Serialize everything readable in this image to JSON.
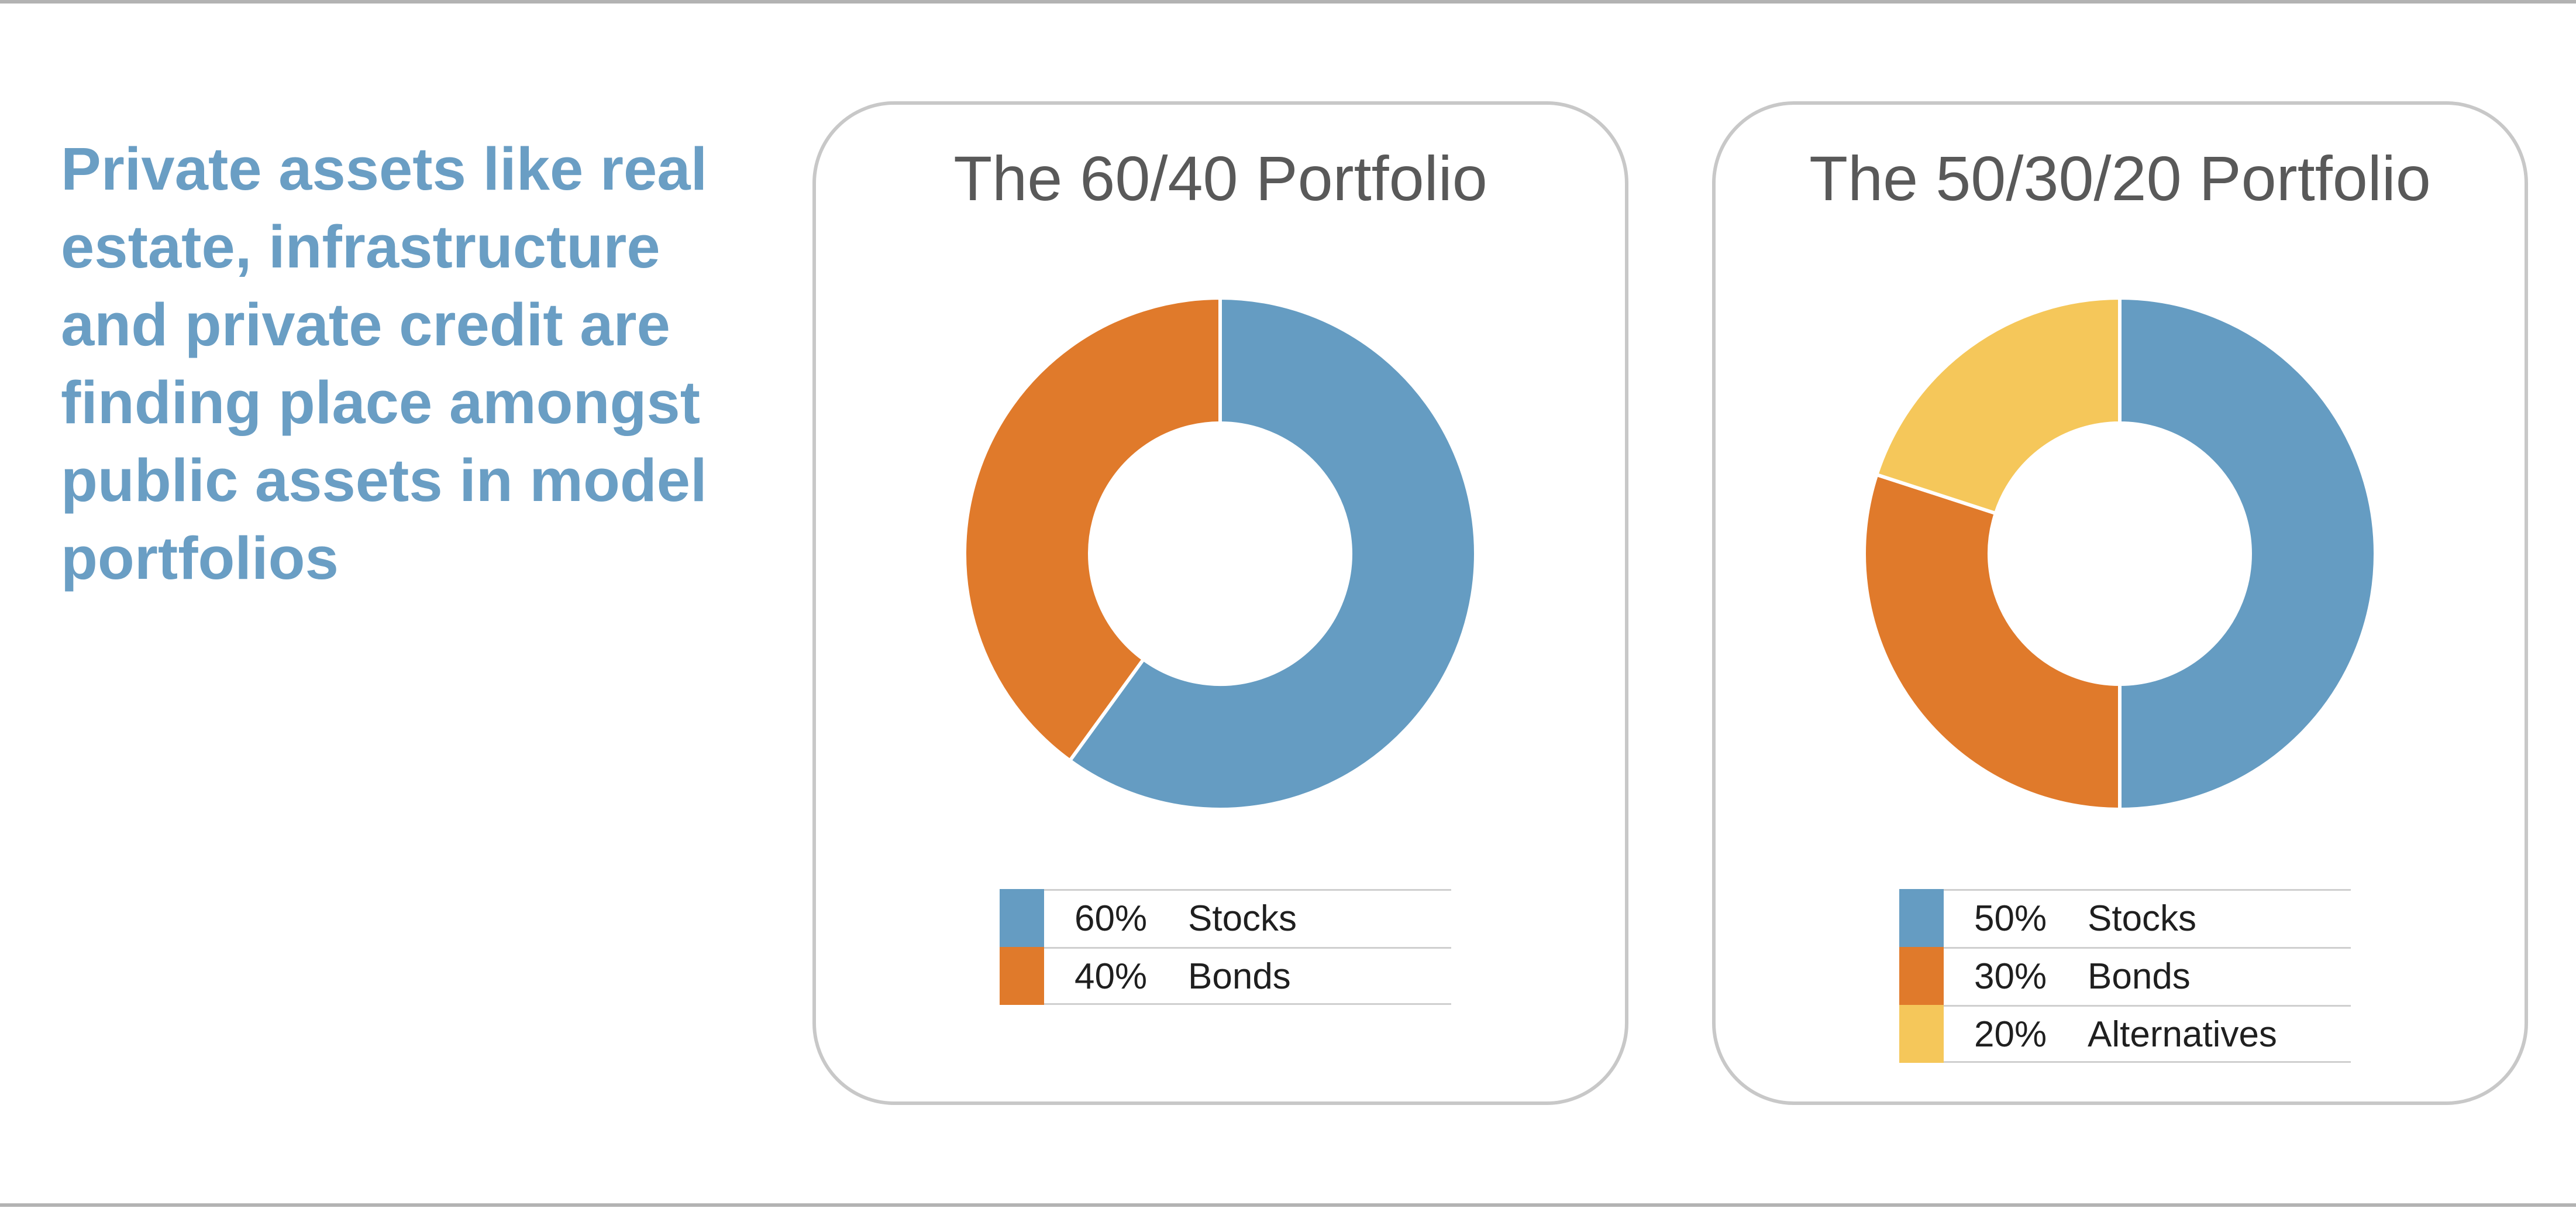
{
  "headline": "Private assets like real estate, infrastructure and private credit are finding place amongst public assets in model portfolios",
  "colors": {
    "headline": "#6a9ec4",
    "stocks": "#659cc2",
    "bonds": "#e07a2b",
    "alternatives": "#f5c75a",
    "card_border": "#c8c8c8"
  },
  "chart_data": [
    {
      "type": "pie",
      "title": "The 60/40 Portfolio",
      "categories": [
        "Stocks",
        "Bonds"
      ],
      "values": [
        60,
        40
      ],
      "percent_labels": [
        "60%",
        "40%"
      ],
      "colors": [
        "#659cc2",
        "#e07a2b"
      ],
      "donut": true,
      "start_angle": "12 o'clock",
      "direction": "clockwise",
      "legend_position": "bottom"
    },
    {
      "type": "pie",
      "title": "The 50/30/20 Portfolio",
      "categories": [
        "Stocks",
        "Bonds",
        "Alternatives"
      ],
      "values": [
        50,
        30,
        20
      ],
      "percent_labels": [
        "50%",
        "30%",
        "20%"
      ],
      "colors": [
        "#659cc2",
        "#e07a2b",
        "#f5c75a"
      ],
      "donut": true,
      "start_angle": "12 o'clock",
      "direction": "clockwise",
      "legend_position": "bottom"
    }
  ]
}
